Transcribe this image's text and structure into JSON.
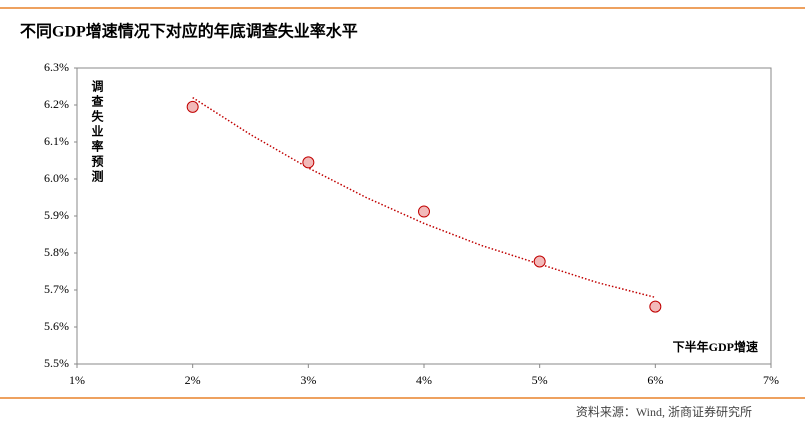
{
  "chart_data": {
    "type": "scatter",
    "title": "不同GDP增速情况下对应的年底调查失业率水平",
    "x_label": "下半年GDP增速",
    "y_label": "调查失业率预测",
    "source": "资料来源：Wind, 浙商证券研究所",
    "x": [
      2,
      3,
      4,
      5,
      6
    ],
    "values": [
      6.195,
      6.045,
      5.912,
      5.777,
      5.655
    ],
    "color": "#c00000",
    "fill": "#f2b9b9",
    "trendline": {
      "x": [
        2,
        2.5,
        3,
        3.5,
        4,
        4.5,
        5,
        5.5,
        6
      ],
      "values": [
        6.22,
        6.12,
        6.03,
        5.95,
        5.88,
        5.82,
        5.77,
        5.72,
        5.68
      ],
      "color": "#c00000"
    },
    "xlim": [
      1,
      7
    ],
    "xticks": [
      {
        "value": 1,
        "label": "1%"
      },
      {
        "value": 2,
        "label": "2%"
      },
      {
        "value": 3,
        "label": "3%"
      },
      {
        "value": 4,
        "label": "4%"
      },
      {
        "value": 5,
        "label": "5%"
      },
      {
        "value": 6,
        "label": "6%"
      },
      {
        "value": 7,
        "label": "7%"
      }
    ],
    "ylim": [
      5.5,
      6.3
    ],
    "yticks": [
      {
        "value": 5.5,
        "label": "5.5%"
      },
      {
        "value": 5.6,
        "label": "5.6%"
      },
      {
        "value": 5.7,
        "label": "5.7%"
      },
      {
        "value": 5.8,
        "label": "5.8%"
      },
      {
        "value": 5.9,
        "label": "5.9%"
      },
      {
        "value": 6.0,
        "label": "6.0%"
      },
      {
        "value": 6.1,
        "label": "6.1%"
      },
      {
        "value": 6.2,
        "label": "6.2%"
      },
      {
        "value": 6.3,
        "label": "6.3%"
      }
    ],
    "grid": false
  }
}
